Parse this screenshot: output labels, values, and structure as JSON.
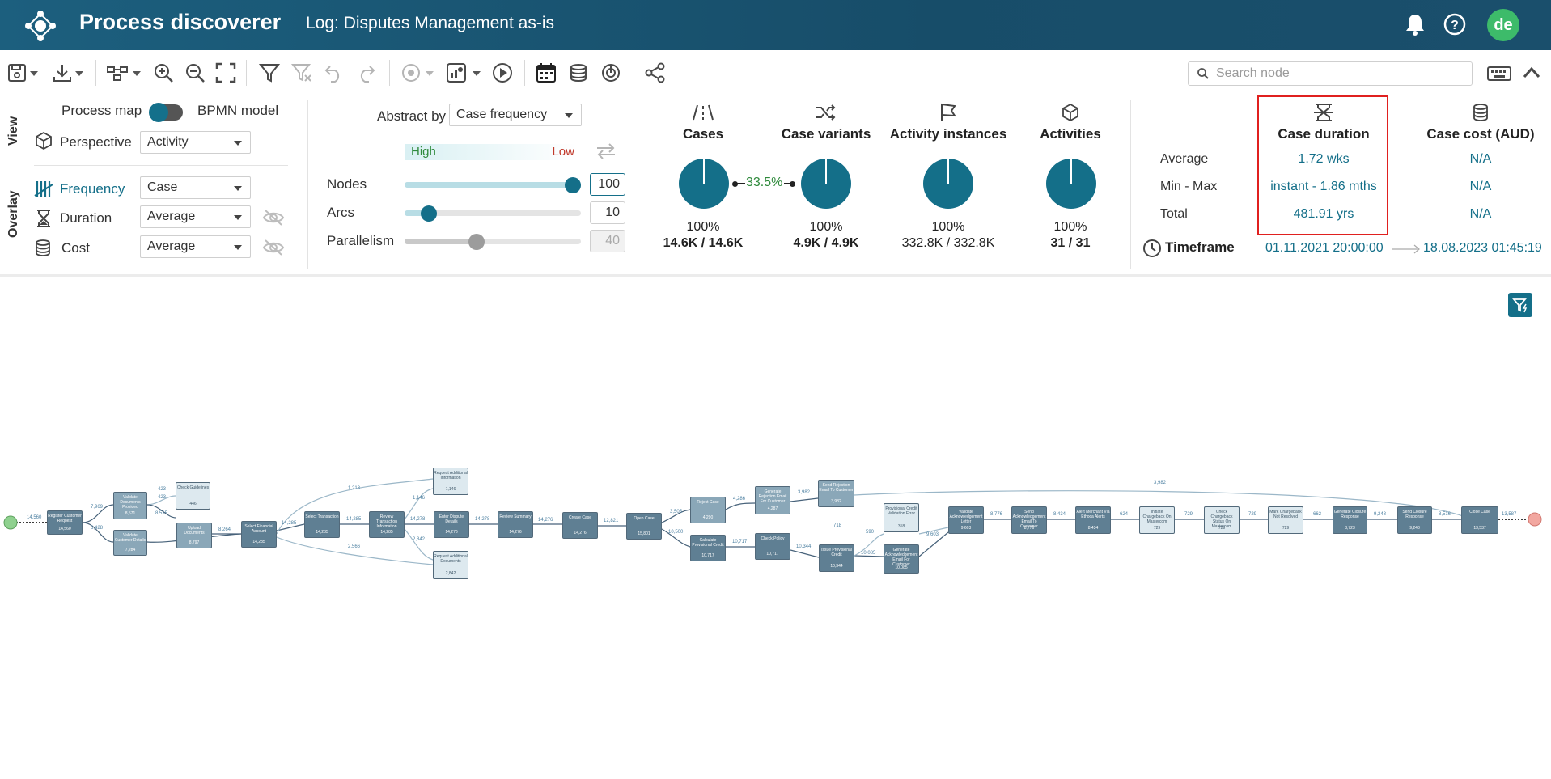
{
  "header": {
    "app_title": "Process discoverer",
    "log_title": "Log: Disputes Management as-is",
    "user_initials": "de"
  },
  "toolbar": {
    "search_placeholder": "Search node",
    "icons": [
      "save-icon",
      "download-icon",
      "layout-icon",
      "zoom-in-icon",
      "zoom-out-icon",
      "fit-screen-icon",
      "filter-icon",
      "clear-filter-icon",
      "undo-icon",
      "redo-icon",
      "animation-icon",
      "dashboard-icon",
      "play-icon",
      "calendar-icon",
      "cost-icon",
      "target-icon",
      "share-icon",
      "keyboard-icon",
      "collapse-icon"
    ]
  },
  "view": {
    "section_label": "View",
    "process_map_label": "Process map",
    "bpmn_label": "BPMN model",
    "perspective_label": "Perspective",
    "perspective_value": "Activity"
  },
  "overlay": {
    "section_label": "Overlay",
    "frequency_label": "Frequency",
    "frequency_value": "Case",
    "duration_label": "Duration",
    "duration_value": "Average",
    "cost_label": "Cost",
    "cost_value": "Average"
  },
  "abstraction": {
    "abstract_by_label": "Abstract by",
    "abstract_by_value": "Case frequency",
    "high_label": "High",
    "low_label": "Low",
    "nodes_label": "Nodes",
    "nodes_value": "100",
    "nodes_level": 1.0,
    "arcs_label": "Arcs",
    "arcs_value": "10",
    "arcs_level": 0.1,
    "parallelism_label": "Parallelism",
    "parallelism_value": "40",
    "parallelism_level": 0.4
  },
  "stats": [
    {
      "title": "Cases",
      "pct": "100%",
      "value": "14.6K / 14.6K",
      "bold": true
    },
    {
      "title": "Case variants",
      "pct": "100%",
      "value": "4.9K / 4.9K",
      "bold": true
    },
    {
      "title": "Activity instances",
      "pct": "100%",
      "value": "332.8K / 332.8K",
      "bold": false
    },
    {
      "title": "Activities",
      "pct": "100%",
      "value": "31 / 31",
      "bold": true
    }
  ],
  "link_pct": "33.5%",
  "metrics": {
    "row_labels": [
      "Average",
      "Min - Max",
      "Total"
    ],
    "case_duration": {
      "title": "Case duration",
      "values": [
        "1.72 wks",
        "instant - 1.86 mths",
        "481.91 yrs"
      ]
    },
    "case_cost": {
      "title": "Case cost (AUD)",
      "values": [
        "N/A",
        "N/A",
        "N/A"
      ]
    },
    "timeframe_label": "Timeframe",
    "timeframe_start": "01.11.2021 20:00:00",
    "timeframe_end": "18.08.2023 01:45:19"
  },
  "process_map": {
    "nodes": [
      {
        "label": "Register Customer Request",
        "count": "14,560",
        "shade": "dark"
      },
      {
        "label": "Validate Documents Provided",
        "count": "8,571",
        "shade": "mid"
      },
      {
        "label": "Validate Customer Details",
        "count": "7,284",
        "shade": "mid"
      },
      {
        "label": "Check Guidelines",
        "count": "446",
        "shade": "light"
      },
      {
        "label": "Upload Documents",
        "count": "8,797",
        "shade": "mid"
      },
      {
        "label": "Select Financial Account",
        "count": "14,285",
        "shade": "dark"
      },
      {
        "label": "Select Transaction",
        "count": "14,285",
        "shade": "dark"
      },
      {
        "label": "Review Transaction Information",
        "count": "14,285",
        "shade": "dark"
      },
      {
        "label": "Request Additional Information",
        "count": "1,146",
        "shade": "light"
      },
      {
        "label": "Enter Dispute Details",
        "count": "14,276",
        "shade": "dark"
      },
      {
        "label": "Request Additional Documents",
        "count": "2,842",
        "shade": "light"
      },
      {
        "label": "Review Summary",
        "count": "14,276",
        "shade": "dark"
      },
      {
        "label": "Create Case",
        "count": "14,276",
        "shade": "dark"
      },
      {
        "label": "Open Case",
        "count": "15,801",
        "shade": "dark"
      },
      {
        "label": "Reject Case",
        "count": "4,290",
        "shade": "mid"
      },
      {
        "label": "Calculate Provisional Credit",
        "count": "10,717",
        "shade": "dark"
      },
      {
        "label": "Generate Rejection Email For Customer",
        "count": "4,287",
        "shade": "mid"
      },
      {
        "label": "Check Policy",
        "count": "10,717",
        "shade": "dark"
      },
      {
        "label": "Send Rejection Email To Customer",
        "count": "3,982",
        "shade": "mid"
      },
      {
        "label": "Issue Provisional Credit",
        "count": "10,344",
        "shade": "dark"
      },
      {
        "label": "Provisional Credit Validation Error",
        "count": "318",
        "shade": "light"
      },
      {
        "label": "Generate Acknowledgement Email For Customer",
        "count": "10,085",
        "shade": "dark"
      },
      {
        "label": "Validate Acknowledgement Letter",
        "count": "9,603",
        "shade": "dark"
      },
      {
        "label": "Send Acknowledgement Email To Customer",
        "count": "8,776",
        "shade": "dark"
      },
      {
        "label": "Alert Merchant Via Ethoca Alerts",
        "count": "8,434",
        "shade": "dark"
      },
      {
        "label": "Initiate Chargeback On Mastercom",
        "count": "729",
        "shade": "light"
      },
      {
        "label": "Check Chargeback Status On Mastercom",
        "count": "729",
        "shade": "light"
      },
      {
        "label": "Mark Chargeback Not Resolved",
        "count": "729",
        "shade": "light"
      },
      {
        "label": "Generate Closure Response",
        "count": "8,723",
        "shade": "dark"
      },
      {
        "label": "Send Closure Response",
        "count": "9,248",
        "shade": "dark"
      },
      {
        "label": "Close Case",
        "count": "13,537",
        "shade": "dark"
      }
    ],
    "edge_labels": [
      "14,560",
      "7,969",
      "6,428",
      "423",
      "423",
      "8,515",
      "8,264",
      "14,285",
      "14,285",
      "1,213",
      "1,146",
      "14,278",
      "2,842",
      "2,566",
      "14,278",
      "14,276",
      "12,821",
      "3,505",
      "10,500",
      "4,286",
      "3,982",
      "10,717",
      "10,344",
      "718",
      "590",
      "10,085",
      "9,603",
      "8,776",
      "8,434",
      "624",
      "729",
      "729",
      "662",
      "9,248",
      "8,516",
      "13,587",
      "3,982"
    ]
  },
  "colors": {
    "header_bg": "#174d69",
    "accent": "#146f89",
    "highlight_border": "#e0201f",
    "start_node": "#8fd18f",
    "end_node": "#f2a7a0"
  }
}
